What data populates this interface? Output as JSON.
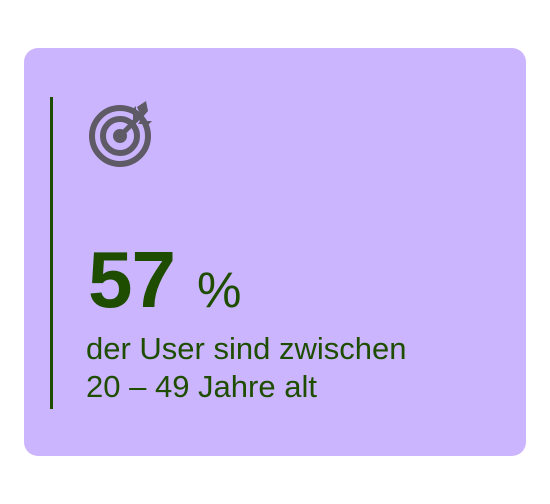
{
  "card": {
    "stat_value": "57",
    "stat_unit": "%",
    "caption_line1": "der User sind zwischen",
    "caption_line2": "20 – 49 Jahre alt",
    "icon": "target-icon"
  },
  "colors": {
    "card_background": "#cbb5ff",
    "text": "#1e4d00",
    "accent_line": "#1e4d00",
    "icon": "#5e5a66"
  }
}
